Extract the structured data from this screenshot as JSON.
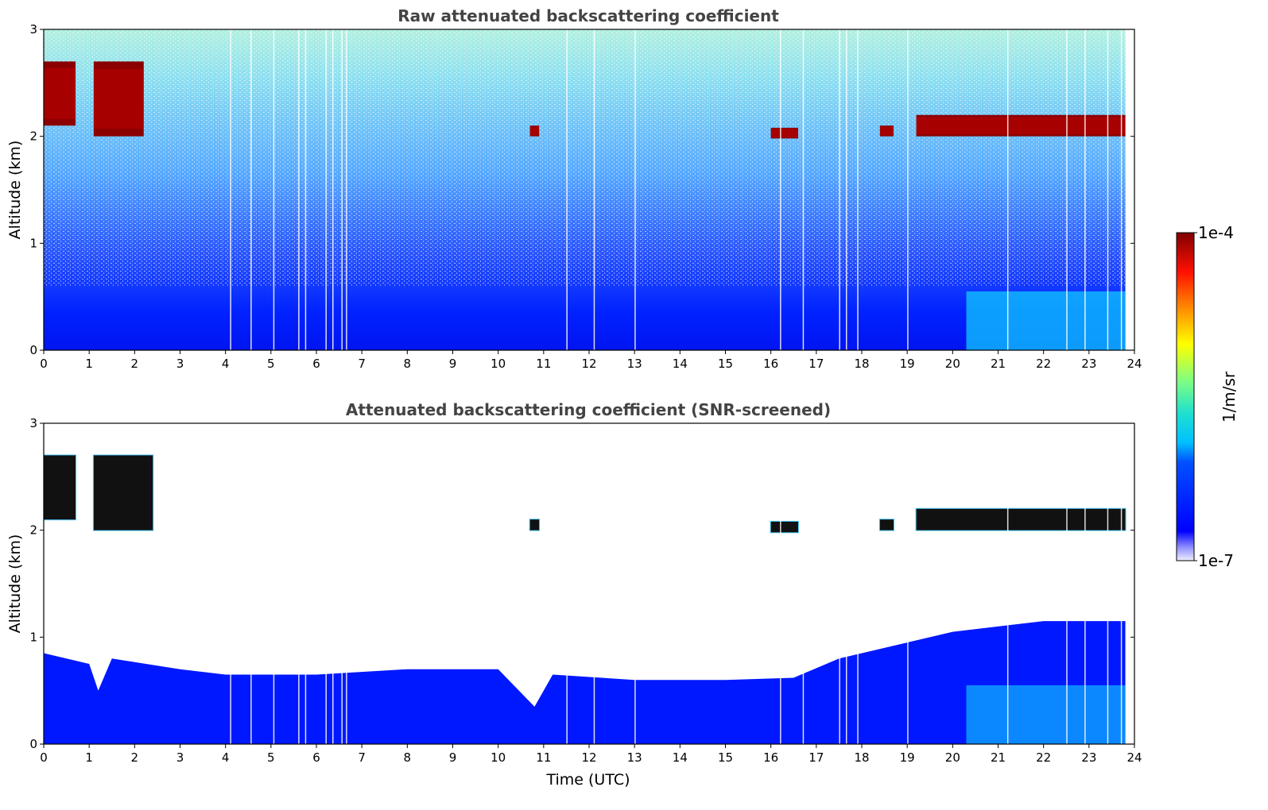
{
  "chart_data": [
    {
      "type": "heatmap",
      "title": "Raw attenuated backscattering coefficient",
      "ylabel": "Altitude (km)",
      "xlabel": "",
      "xlim": [
        0,
        24
      ],
      "ylim": [
        0,
        3
      ],
      "x_ticks": [
        "0",
        "1",
        "2",
        "3",
        "4",
        "5",
        "6",
        "7",
        "8",
        "9",
        "10",
        "11",
        "12",
        "13",
        "14",
        "15",
        "16",
        "17",
        "18",
        "19",
        "20",
        "21",
        "22",
        "23",
        "24"
      ],
      "y_ticks": [
        "0",
        "1",
        "2",
        "3"
      ],
      "grid": false,
      "colorbar": {
        "min_label": "1e-7",
        "max_label": "1e-4",
        "label": "1/m/sr",
        "scale": "log"
      },
      "features": [
        {
          "name": "boundary-layer",
          "time": [
            0,
            23.8
          ],
          "altitude": [
            0,
            0.6
          ]
        },
        {
          "name": "cloud",
          "time": [
            0,
            0.7
          ],
          "altitude": [
            2.1,
            2.7
          ]
        },
        {
          "name": "cloud",
          "time": [
            1.1,
            2.2
          ],
          "altitude": [
            2.0,
            2.7
          ]
        },
        {
          "name": "cloud",
          "time": [
            10.7,
            10.9
          ],
          "altitude": [
            2.0,
            2.1
          ]
        },
        {
          "name": "cloud",
          "time": [
            16.0,
            16.6
          ],
          "altitude": [
            1.98,
            2.08
          ]
        },
        {
          "name": "cloud",
          "time": [
            18.4,
            18.7
          ],
          "altitude": [
            2.0,
            2.1
          ]
        },
        {
          "name": "cloud",
          "time": [
            19.2,
            23.8
          ],
          "altitude": [
            2.0,
            2.2
          ]
        }
      ]
    },
    {
      "type": "heatmap",
      "title": "Attenuated backscattering coefficient (SNR-screened)",
      "ylabel": "Altitude (km)",
      "xlabel": "Time (UTC)",
      "xlim": [
        0,
        24
      ],
      "ylim": [
        0,
        3
      ],
      "x_ticks": [
        "0",
        "1",
        "2",
        "3",
        "4",
        "5",
        "6",
        "7",
        "8",
        "9",
        "10",
        "11",
        "12",
        "13",
        "14",
        "15",
        "16",
        "17",
        "18",
        "19",
        "20",
        "21",
        "22",
        "23",
        "24"
      ],
      "y_ticks": [
        "0",
        "1",
        "2",
        "3"
      ],
      "grid": false,
      "boundary_layer_top_km": [
        [
          0,
          0.85
        ],
        [
          1,
          0.75
        ],
        [
          1.2,
          0.5
        ],
        [
          1.5,
          0.8
        ],
        [
          3,
          0.7
        ],
        [
          4,
          0.65
        ],
        [
          6,
          0.65
        ],
        [
          8,
          0.7
        ],
        [
          10,
          0.7
        ],
        [
          10.8,
          0.35
        ],
        [
          11.2,
          0.65
        ],
        [
          13,
          0.6
        ],
        [
          15,
          0.6
        ],
        [
          16.5,
          0.62
        ],
        [
          17.5,
          0.8
        ],
        [
          19,
          0.95
        ],
        [
          20,
          1.05
        ],
        [
          22,
          1.15
        ],
        [
          23.8,
          1.15
        ]
      ],
      "features": [
        {
          "name": "cloud",
          "time": [
            0,
            0.7
          ],
          "altitude": [
            2.1,
            2.7
          ]
        },
        {
          "name": "cloud",
          "time": [
            1.1,
            2.4
          ],
          "altitude": [
            2.0,
            2.7
          ]
        },
        {
          "name": "cloud",
          "time": [
            10.7,
            10.9
          ],
          "altitude": [
            2.0,
            2.1
          ]
        },
        {
          "name": "cloud",
          "time": [
            16.0,
            16.6
          ],
          "altitude": [
            1.98,
            2.08
          ]
        },
        {
          "name": "cloud",
          "time": [
            18.4,
            18.7
          ],
          "altitude": [
            2.0,
            2.1
          ]
        },
        {
          "name": "cloud",
          "time": [
            19.2,
            23.8
          ],
          "altitude": [
            2.0,
            2.2
          ]
        }
      ]
    }
  ],
  "colors": {
    "dark_red": "#800000",
    "deep_blue": "#0018ff",
    "cyan": "#10d0ff",
    "title_gray": "#444444"
  }
}
